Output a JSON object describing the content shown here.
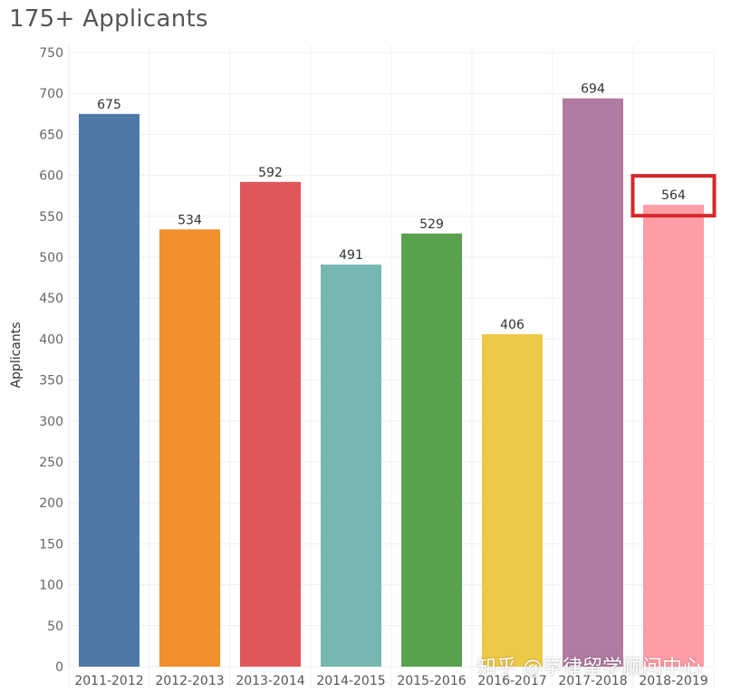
{
  "chart_data": {
    "type": "bar",
    "title": "175+ Applicants",
    "ylabel": "Applicants",
    "xlabel": "",
    "ylim": [
      0,
      750
    ],
    "yticks": [
      0,
      50,
      100,
      150,
      200,
      250,
      300,
      350,
      400,
      450,
      500,
      550,
      600,
      650,
      700,
      750
    ],
    "grid": true,
    "categories": [
      "2011-2012",
      "2012-2013",
      "2013-2014",
      "2014-2015",
      "2015-2016",
      "2016-2017",
      "2017-2018",
      "2018-2019"
    ],
    "values": [
      675,
      534,
      592,
      491,
      529,
      406,
      694,
      564
    ],
    "colors": [
      "#4e79a7",
      "#f28e2b",
      "#e15759",
      "#76b7b2",
      "#59a14f",
      "#edc948",
      "#b07aa1",
      "#ff9da7"
    ],
    "highlight": {
      "category": "2018-2019",
      "color": "#d62728"
    }
  },
  "watermark": "知乎 @学律留学顾问中心"
}
